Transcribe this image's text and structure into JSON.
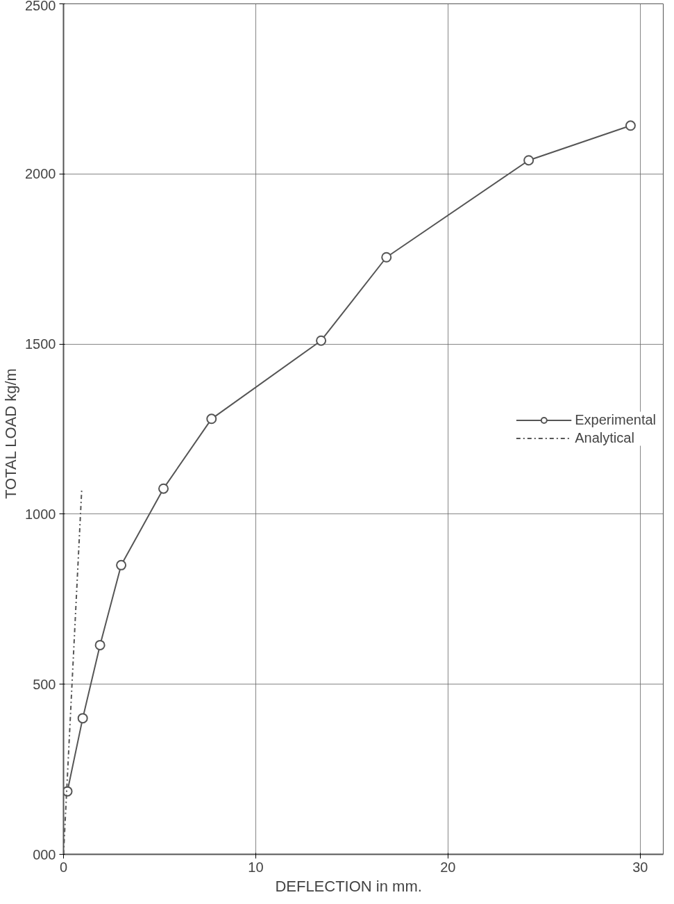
{
  "chart_data": {
    "type": "line",
    "xlabel": "DEFLECTION      in   mm.",
    "ylabel": "TOTAL  LOAD  kg/m",
    "xlim": [
      0,
      31.2
    ],
    "ylim": [
      0,
      2500
    ],
    "xticks": [
      0,
      10,
      20,
      30
    ],
    "yticks": [
      {
        "value": 0,
        "label": "000"
      },
      500,
      1000,
      1500,
      2000,
      2500
    ],
    "grid": true,
    "legend": "right",
    "series": [
      {
        "name": "Experimental",
        "color": "#555555",
        "marker": "circle",
        "line_style": "solid",
        "x": [
          0.2,
          1.0,
          1.9,
          3.0,
          5.2,
          7.7,
          13.4,
          16.8,
          24.2,
          29.5
        ],
        "values": [
          185,
          400,
          615,
          850,
          1075,
          1280,
          1510,
          1755,
          2040,
          2142
        ]
      },
      {
        "name": "Analytical",
        "color": "#555555",
        "marker": "none",
        "line_style": "dashdot",
        "x": [
          0,
          0.95
        ],
        "values": [
          0,
          1075
        ]
      }
    ]
  }
}
